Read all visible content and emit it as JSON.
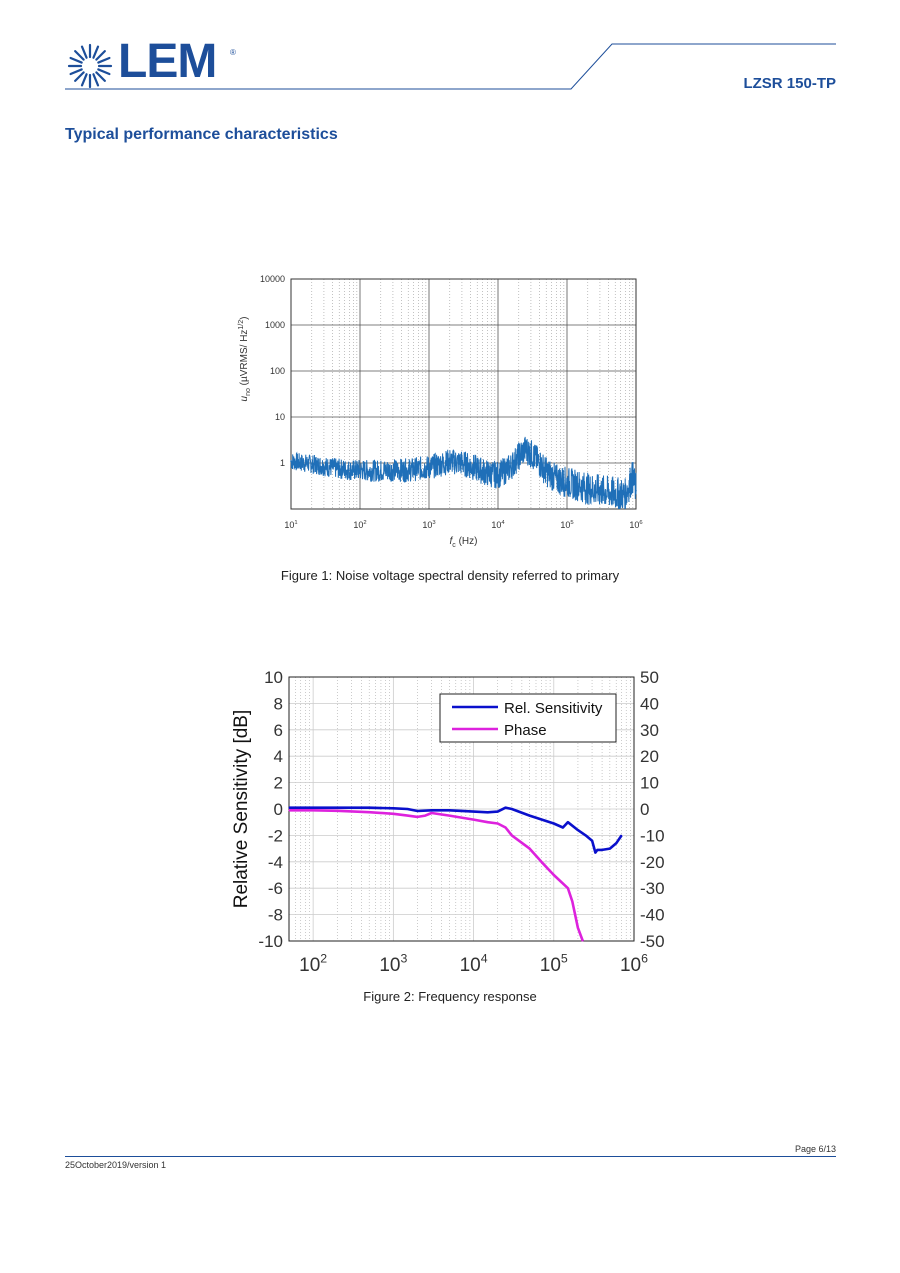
{
  "header": {
    "logo_text": "LEM",
    "logo_reg": "®",
    "product": "LZSR 150-TP",
    "section_title": "Typical performance characteristics"
  },
  "colors": {
    "brand": "#1d4e9a",
    "noise_trace": "#1f6fb8",
    "sensitivity": "#0a10cc",
    "phase": "#dd22dd"
  },
  "figures": [
    {
      "caption": "Figure 1: Noise voltage spectral density referred to primary"
    },
    {
      "caption": "Figure 2: Frequency response"
    }
  ],
  "chart_data": [
    {
      "type": "line",
      "title": "",
      "xlabel": "f_c (Hz)",
      "ylabel": "u_no (µVRMS/ Hz^1/2)",
      "x_scale": "log",
      "y_scale": "log",
      "xlim": [
        10,
        1000000
      ],
      "ylim": [
        0.1,
        10000
      ],
      "x_ticks": [
        "10^1",
        "10^2",
        "10^3",
        "10^4",
        "10^5",
        "10^6"
      ],
      "y_ticks": [
        "10000",
        "1000",
        "100",
        "10",
        "1"
      ],
      "grid": true,
      "series": [
        {
          "x": [
            10,
            15,
            20,
            30,
            50,
            70,
            100,
            150,
            200,
            300,
            500,
            700,
            1000,
            1500,
            2000,
            3000,
            5000,
            7000,
            10000,
            15000,
            20000,
            25000,
            30000,
            40000,
            50000,
            70000,
            100000,
            150000,
            200000,
            300000,
            500000,
            700000,
            800000,
            900000,
            1000000
          ],
          "values": [
            1.1,
            1.0,
            0.95,
            0.85,
            0.75,
            0.7,
            0.7,
            0.68,
            0.68,
            0.7,
            0.7,
            0.75,
            0.8,
            0.95,
            1.1,
            1.0,
            0.75,
            0.6,
            0.55,
            0.8,
            1.4,
            2.0,
            1.6,
            1.0,
            0.65,
            0.45,
            0.38,
            0.32,
            0.28,
            0.25,
            0.22,
            0.2,
            0.35,
            0.5,
            0.25
          ]
        }
      ]
    },
    {
      "type": "line",
      "title": "",
      "ylabel": "Relative Sensitivity [dB]",
      "x_scale": "log",
      "xlim": [
        50,
        1000000
      ],
      "ylim": [
        -10,
        10
      ],
      "y2lim": [
        -50,
        50
      ],
      "x_ticks": [
        "10^2",
        "10^3",
        "10^4",
        "10^5",
        "10^6"
      ],
      "y_ticks": [
        "10",
        "8",
        "6",
        "4",
        "2",
        "0",
        "-2",
        "-4",
        "-6",
        "-8",
        "-10"
      ],
      "y2_ticks": [
        "50",
        "40",
        "30",
        "20",
        "10",
        "0",
        "-10",
        "-20",
        "-30",
        "-40",
        "-50"
      ],
      "grid": true,
      "legend_position": "top-right",
      "series": [
        {
          "name": "Rel. Sensitivity",
          "axis": "left",
          "x": [
            50,
            100,
            200,
            500,
            1000,
            1500,
            2000,
            3000,
            5000,
            10000,
            15000,
            20000,
            25000,
            30000,
            50000,
            100000,
            130000,
            150000,
            200000,
            250000,
            300000,
            330000,
            350000,
            400000,
            500000,
            600000,
            700000
          ],
          "values": [
            0.1,
            0.1,
            0.1,
            0.1,
            0.05,
            0.0,
            -0.15,
            -0.1,
            -0.1,
            -0.2,
            -0.25,
            -0.2,
            0.1,
            0.0,
            -0.5,
            -1.1,
            -1.4,
            -1.0,
            -1.6,
            -2.0,
            -2.4,
            -3.3,
            -3.1,
            -3.1,
            -3.0,
            -2.6,
            -2.0
          ]
        },
        {
          "name": "Phase",
          "axis": "right",
          "x": [
            50,
            100,
            200,
            500,
            1000,
            1500,
            2000,
            2500,
            3000,
            5000,
            10000,
            15000,
            20000,
            25000,
            30000,
            50000,
            70000,
            100000,
            150000,
            170000,
            200000,
            230000
          ],
          "values": [
            -0.5,
            -0.5,
            -0.7,
            -1.2,
            -1.8,
            -2.5,
            -3.0,
            -2.5,
            -1.5,
            -2.5,
            -4.0,
            -5.0,
            -5.5,
            -7.0,
            -10.0,
            -15.0,
            -20.0,
            -25.0,
            -30.0,
            -35.0,
            -45.0,
            -50.0
          ]
        }
      ]
    }
  ],
  "footer": {
    "page": "Page 6/13",
    "date": "25October2019/version 1"
  }
}
